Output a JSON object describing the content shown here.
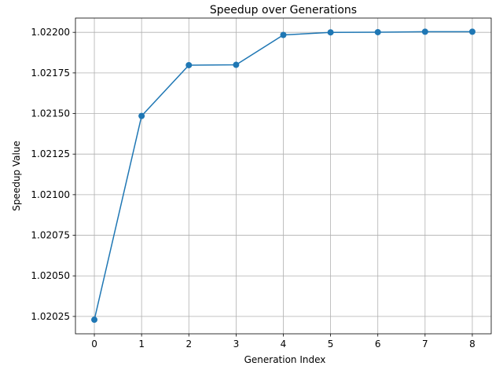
{
  "chart_data": {
    "type": "line",
    "title": "Speedup over Generations",
    "xlabel": "Generation Index",
    "ylabel": "Speedup Value",
    "x": [
      0,
      1,
      2,
      3,
      4,
      5,
      6,
      7,
      8
    ],
    "x_ticks": [
      "0",
      "1",
      "2",
      "3",
      "4",
      "5",
      "6",
      "7",
      "8"
    ],
    "xlim": [
      -0.4,
      8.4
    ],
    "y_ticks": [
      1.02025,
      1.0205,
      1.02075,
      1.021,
      1.02125,
      1.0215,
      1.02175,
      1.022
    ],
    "y_tick_labels": [
      "1.02025",
      "1.02050",
      "1.02075",
      "1.02100",
      "1.02125",
      "1.02150",
      "1.02175",
      "1.02200"
    ],
    "ylim": [
      1.020143,
      1.022088
    ],
    "grid": true,
    "legend": "none",
    "series": [
      {
        "color": "#1f77b4",
        "marker": "circle",
        "values": [
          1.02023,
          1.021485,
          1.021798,
          1.0218,
          1.021984,
          1.022,
          1.022001,
          1.022004,
          1.022004
        ]
      }
    ]
  }
}
